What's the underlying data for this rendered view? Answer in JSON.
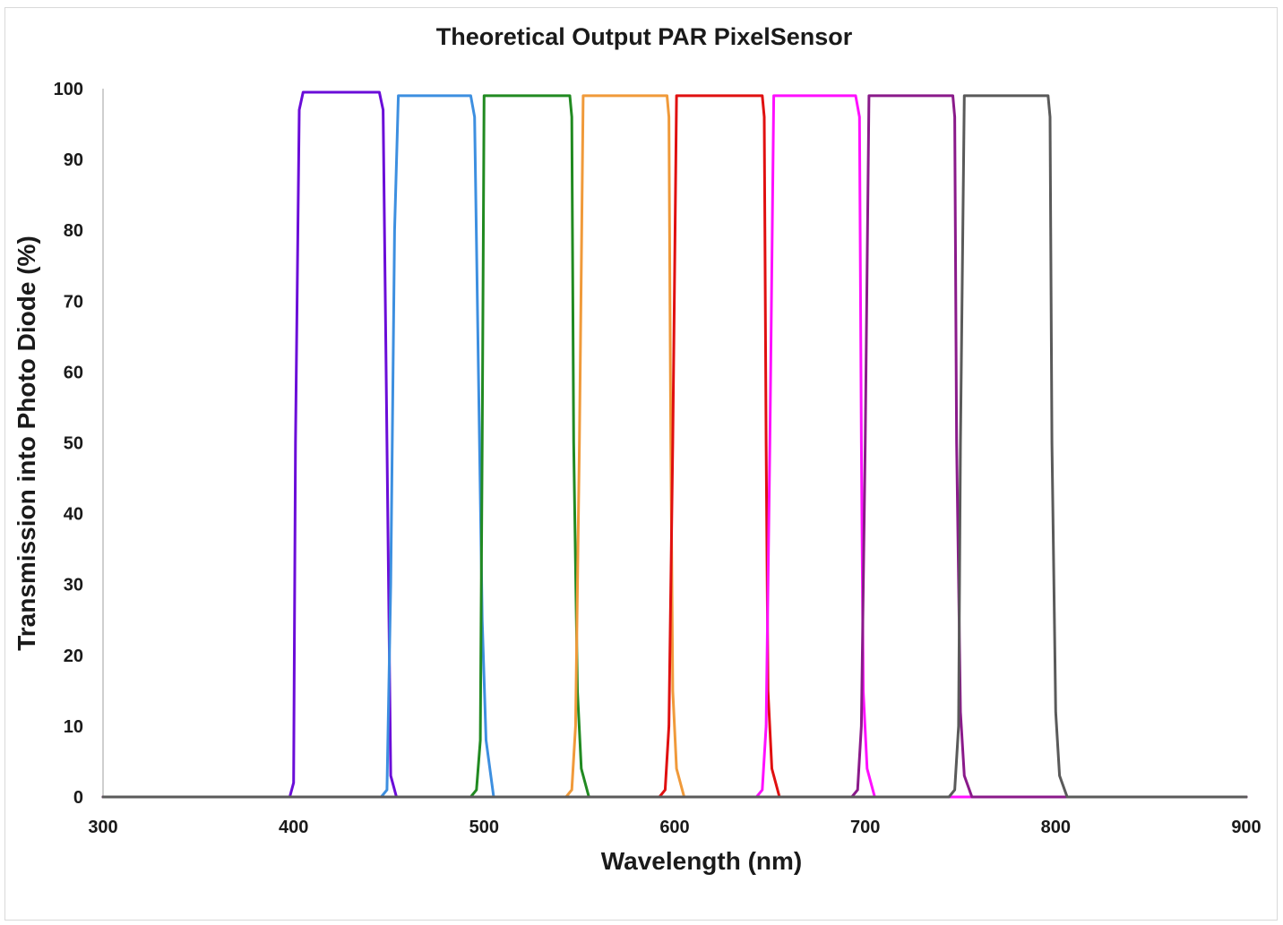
{
  "chart_data": {
    "type": "line",
    "title": "Theoretical Output PAR PixelSensor",
    "xlabel": "Wavelength (nm)",
    "ylabel": "Transmission into Photo Diode (%)",
    "xlim": [
      300,
      900
    ],
    "ylim": [
      0,
      100
    ],
    "xticks": [
      300,
      400,
      500,
      600,
      700,
      800,
      900
    ],
    "yticks": [
      0,
      10,
      20,
      30,
      40,
      50,
      60,
      70,
      80,
      90,
      100
    ],
    "grid": false,
    "legend": "none",
    "series": [
      {
        "color": "#6a0dd8",
        "x": [
          300,
          398,
          400,
          401,
          403,
          405,
          445,
          447,
          449,
          451,
          454,
          900
        ],
        "y": [
          0,
          0,
          2,
          50,
          97,
          99.5,
          99.5,
          97,
          50,
          3,
          0,
          0
        ]
      },
      {
        "color": "#3d8fe0",
        "x": [
          300,
          446,
          449,
          451,
          453,
          455,
          493,
          495,
          497,
          499,
          501,
          505,
          900
        ],
        "y": [
          0,
          0,
          1,
          30,
          80,
          99,
          99,
          96,
          60,
          25,
          8,
          0,
          0
        ]
      },
      {
        "color": "#218a21",
        "x": [
          300,
          493,
          496,
          498,
          499,
          500,
          545,
          546,
          547,
          549,
          551,
          555,
          900
        ],
        "y": [
          0,
          0,
          1,
          8,
          50,
          99,
          99,
          96,
          50,
          15,
          4,
          0,
          0
        ]
      },
      {
        "color": "#f09a3a",
        "x": [
          300,
          543,
          546,
          548,
          550,
          552,
          596,
          597,
          598,
          599,
          601,
          605,
          900
        ],
        "y": [
          0,
          0,
          1,
          10,
          50,
          99,
          99,
          96,
          50,
          15,
          4,
          0,
          0
        ]
      },
      {
        "color": "#e01010",
        "x": [
          300,
          592,
          595,
          597,
          599,
          601,
          646,
          647,
          648,
          649,
          651,
          655,
          900
        ],
        "y": [
          0,
          0,
          1,
          10,
          50,
          99,
          99,
          96,
          50,
          15,
          4,
          0,
          0
        ]
      },
      {
        "color": "#ff10ff",
        "x": [
          300,
          643,
          646,
          648,
          650,
          652,
          695,
          697,
          698,
          699,
          701,
          705,
          900
        ],
        "y": [
          0,
          0,
          1,
          10,
          50,
          99,
          99,
          96,
          50,
          15,
          4,
          0,
          0
        ]
      },
      {
        "color": "#8a1a8a",
        "x": [
          300,
          693,
          696,
          698,
          700,
          702,
          746,
          747,
          748,
          750,
          752,
          756,
          900
        ],
        "y": [
          0,
          0,
          1,
          10,
          50,
          99,
          99,
          96,
          50,
          12,
          3,
          0,
          0
        ]
      },
      {
        "color": "#5a5a5a",
        "x": [
          300,
          744,
          747,
          749,
          750,
          752,
          796,
          797,
          798,
          800,
          802,
          806,
          900
        ],
        "y": [
          0,
          0,
          1,
          10,
          50,
          99,
          99,
          96,
          50,
          12,
          3,
          0,
          0
        ]
      }
    ]
  }
}
